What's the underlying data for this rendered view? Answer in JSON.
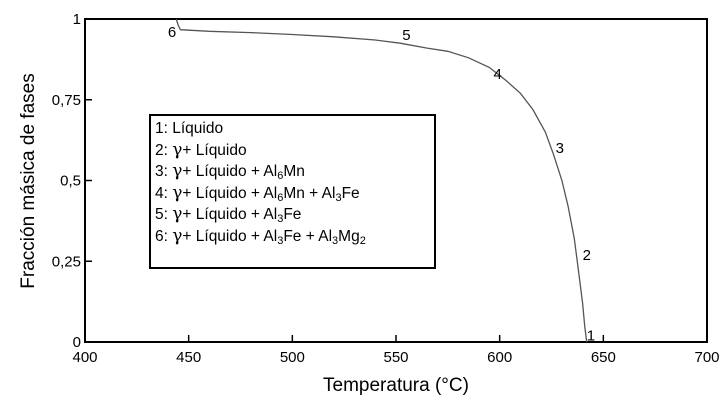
{
  "chart_data": {
    "type": "line",
    "xlabel": "Temperatura (°C)",
    "ylabel": "Fracción másica de fases",
    "xlim": [
      400,
      700
    ],
    "ylim": [
      0,
      1
    ],
    "x_ticks": [
      400,
      450,
      500,
      550,
      600,
      650,
      700
    ],
    "x_tick_labels": [
      "400",
      "450",
      "500",
      "550",
      "600",
      "650",
      "700"
    ],
    "y_ticks": [
      0,
      0.25,
      0.5,
      0.75,
      1
    ],
    "y_tick_labels": [
      "0",
      "0,25",
      "0,5",
      "0,75",
      "1"
    ],
    "grid": false,
    "legend_position": "center-left",
    "series": [
      {
        "color": "#555555",
        "x": [
          642,
          641,
          640,
          638,
          636,
          633,
          630,
          626,
          622,
          616,
          610,
          603,
          595,
          585,
          575,
          565,
          552,
          540,
          520,
          500,
          480,
          460,
          446,
          445,
          444
        ],
        "y": [
          0,
          0.05,
          0.12,
          0.22,
          0.32,
          0.42,
          0.5,
          0.58,
          0.65,
          0.72,
          0.77,
          0.81,
          0.85,
          0.88,
          0.9,
          0.91,
          0.925,
          0.935,
          0.945,
          0.952,
          0.958,
          0.962,
          0.967,
          0.98,
          1
        ]
      }
    ],
    "annotations": [
      {
        "text": "1",
        "x": 642,
        "y": 0.02
      },
      {
        "text": "2",
        "x": 640,
        "y": 0.27
      },
      {
        "text": "3",
        "x": 627,
        "y": 0.6
      },
      {
        "text": "4",
        "x": 597,
        "y": 0.83
      },
      {
        "text": "5",
        "x": 553,
        "y": 0.95
      },
      {
        "text": "6",
        "x": 440,
        "y": 0.96
      }
    ],
    "legend": [
      {
        "id": "1",
        "parts": [
          {
            "t": "1: Líquido"
          }
        ]
      },
      {
        "id": "2",
        "parts": [
          {
            "t": "2: "
          },
          {
            "t": "γ",
            "g": true
          },
          {
            "t": "+ Líquido"
          }
        ]
      },
      {
        "id": "3",
        "parts": [
          {
            "t": "3: "
          },
          {
            "t": "γ",
            "g": true
          },
          {
            "t": "+ Líquido + Al"
          },
          {
            "t": "6",
            "s": true
          },
          {
            "t": "Mn"
          }
        ]
      },
      {
        "id": "4",
        "parts": [
          {
            "t": "4: "
          },
          {
            "t": "γ",
            "g": true
          },
          {
            "t": "+ Líquido + Al"
          },
          {
            "t": "6",
            "s": true
          },
          {
            "t": "Mn + Al"
          },
          {
            "t": "3",
            "s": true
          },
          {
            "t": "Fe"
          }
        ]
      },
      {
        "id": "5",
        "parts": [
          {
            "t": "5: "
          },
          {
            "t": "γ",
            "g": true
          },
          {
            "t": "+ Líquido + Al"
          },
          {
            "t": "3",
            "s": true
          },
          {
            "t": "Fe"
          }
        ]
      },
      {
        "id": "6",
        "parts": [
          {
            "t": "6: "
          },
          {
            "t": "γ",
            "g": true
          },
          {
            "t": "+ Líquido + Al"
          },
          {
            "t": "3",
            "s": true
          },
          {
            "t": "Fe + Al"
          },
          {
            "t": "3",
            "s": true
          },
          {
            "t": "Mg"
          },
          {
            "t": "2",
            "s": true
          }
        ]
      }
    ]
  }
}
